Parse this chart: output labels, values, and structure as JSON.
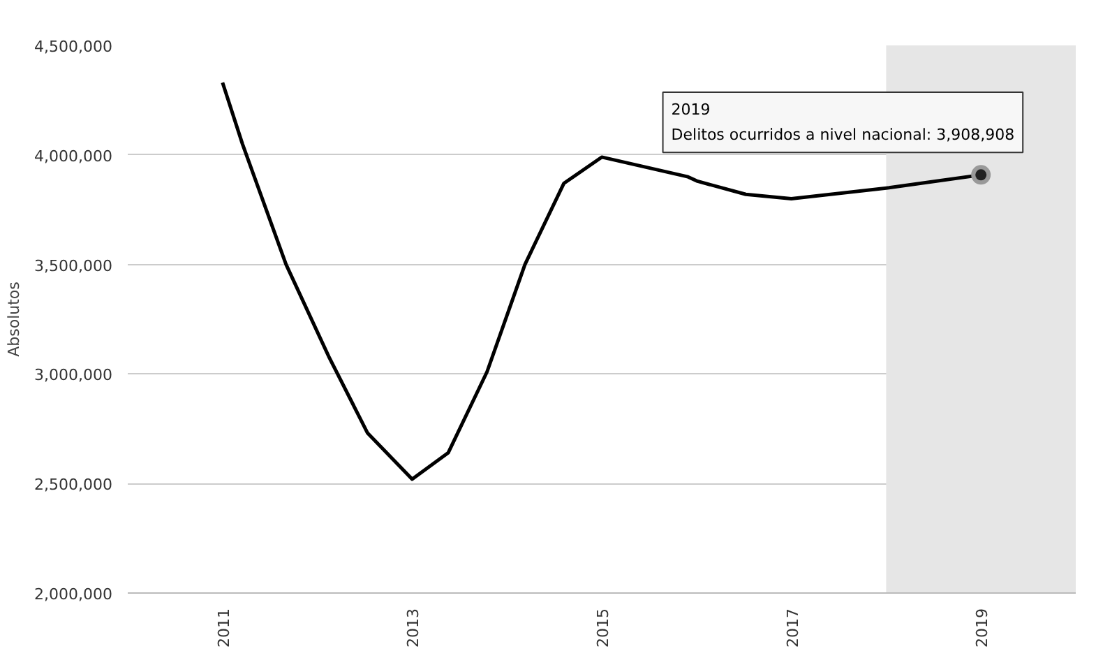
{
  "chart_data": {
    "type": "line",
    "ylabel": "Absolutos",
    "x": [
      2011,
      2011.21,
      2011.67,
      2012.12,
      2012.53,
      2013,
      2013.38,
      2013.79,
      2014.19,
      2014.6,
      2015,
      2015.91,
      2016.01,
      2016.52,
      2017,
      2018.03,
      2019
    ],
    "series": [
      {
        "color": "#000000",
        "values": [
          4330000,
          4050000,
          3500000,
          3080000,
          2730000,
          2520000,
          2640000,
          3010000,
          3500000,
          3870000,
          3990000,
          3900000,
          3880000,
          3820000,
          3800000,
          3850000,
          3908908
        ]
      }
    ],
    "xlim": [
      2010,
      2020
    ],
    "xticks": [
      2011,
      2013,
      2015,
      2017,
      2019
    ],
    "ylim": [
      2000000,
      4500000
    ],
    "yticks": [
      {
        "value": 2000000,
        "label": "2,000,000"
      },
      {
        "value": 2500000,
        "label": "2,500,000"
      },
      {
        "value": 3000000,
        "label": "3,000,000"
      },
      {
        "value": 3500000,
        "label": "3,500,000"
      },
      {
        "value": 4000000,
        "label": "4,000,000"
      },
      {
        "value": 4500000,
        "label": "4,500,000"
      }
    ],
    "grid": "y",
    "marker": "none",
    "line_style": "solid",
    "bands": [
      {
        "axis": "x",
        "from": 2018,
        "to": 2020,
        "color": "#e6e6e6"
      }
    ],
    "annotations": [
      {
        "text": "2019\nDelitos ocurridos a nivel nacional: 3,908,908",
        "x": 2019,
        "y": 3908908
      }
    ]
  }
}
